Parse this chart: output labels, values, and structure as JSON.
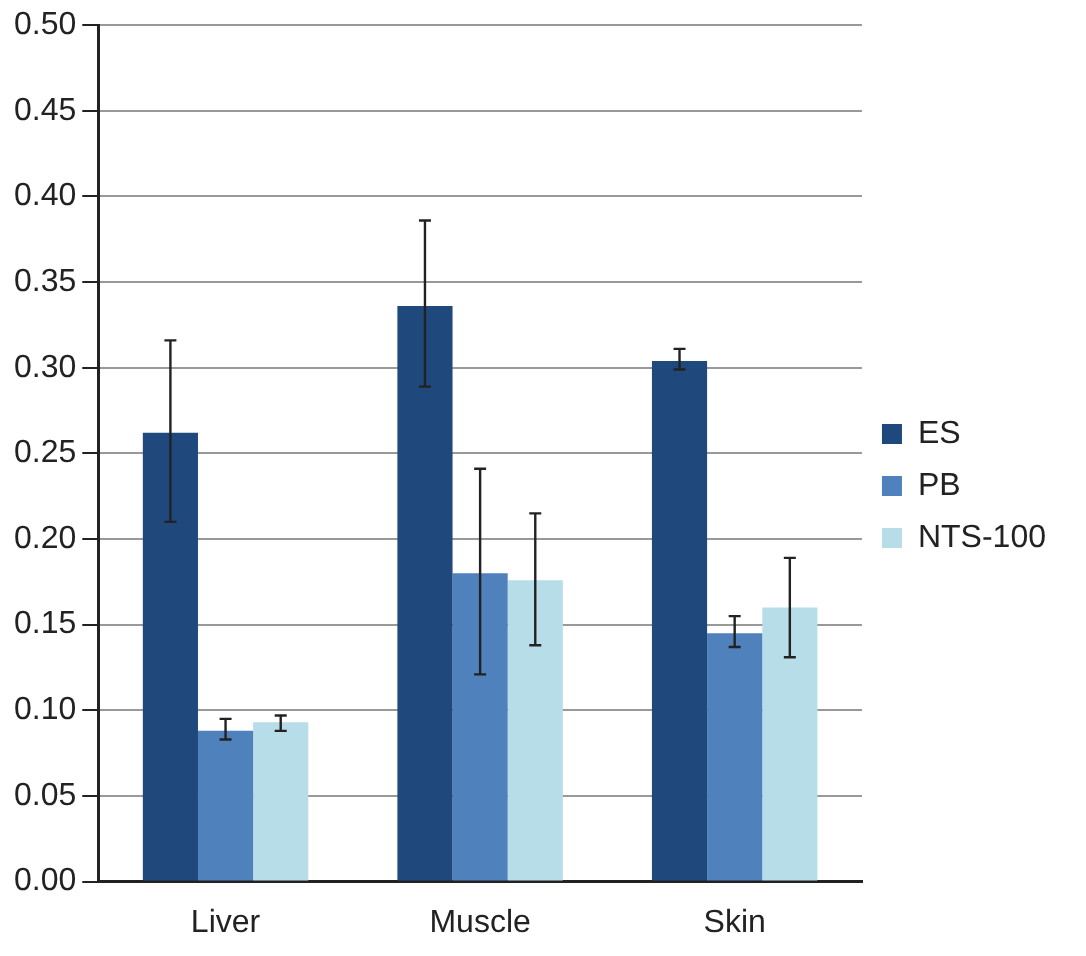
{
  "chart_data": {
    "type": "bar",
    "categories": [
      "Liver",
      "Muscle",
      "Skin"
    ],
    "series": [
      {
        "name": "ES",
        "color": "#1f497d",
        "values": [
          0.262,
          0.336,
          0.304
        ],
        "errors": [
          [
            0.21,
            0.316
          ],
          [
            0.289,
            0.386
          ],
          [
            0.299,
            0.311
          ]
        ]
      },
      {
        "name": "PB",
        "color": "#4f81bd",
        "values": [
          0.088,
          0.18,
          0.145
        ],
        "errors": [
          [
            0.083,
            0.095
          ],
          [
            0.121,
            0.241
          ],
          [
            0.137,
            0.155
          ]
        ]
      },
      {
        "name": "NTS-100",
        "color": "#b7dde8",
        "values": [
          0.093,
          0.176,
          0.16
        ],
        "errors": [
          [
            0.088,
            0.097
          ],
          [
            0.138,
            0.215
          ],
          [
            0.131,
            0.189
          ]
        ]
      }
    ],
    "ylim": [
      0,
      0.5
    ],
    "yticks": [
      {
        "value": 0,
        "label": "0.00"
      },
      {
        "value": 0.05,
        "label": "0.05"
      },
      {
        "value": 0.1,
        "label": "0.10"
      },
      {
        "value": 0.15,
        "label": "0.15"
      },
      {
        "value": 0.2,
        "label": "0.20"
      },
      {
        "value": 0.25,
        "label": "0.25"
      },
      {
        "value": 0.3,
        "label": "0.30"
      },
      {
        "value": 0.35,
        "label": "0.35"
      },
      {
        "value": 0.4,
        "label": "0.40"
      },
      {
        "value": 0.45,
        "label": "0.45"
      },
      {
        "value": 0.5,
        "label": "0.50"
      }
    ],
    "grid": "y",
    "legend": "right"
  }
}
